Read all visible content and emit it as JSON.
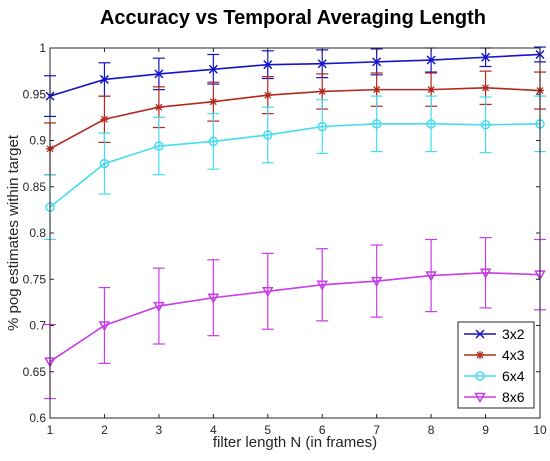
{
  "chart_data": {
    "type": "line",
    "title": "Accuracy vs Temporal Averaging Length",
    "xlabel": "filter length N (in frames)",
    "ylabel": "% pog estimates within target",
    "xlim": [
      1,
      10
    ],
    "ylim": [
      0.6,
      1.0
    ],
    "x_ticks": [
      1,
      2,
      3,
      4,
      5,
      6,
      7,
      8,
      9,
      10
    ],
    "y_ticks": [
      0.6,
      0.65,
      0.7,
      0.75,
      0.8,
      0.85,
      0.9,
      0.95,
      1.0
    ],
    "y_tick_labels": [
      "0.6",
      "0.65",
      "0.7",
      "0.75",
      "0.8",
      "0.85",
      "0.9",
      "0.95",
      "1"
    ],
    "grid": false,
    "legend_position": "bottom-right",
    "x": [
      1,
      2,
      3,
      4,
      5,
      6,
      7,
      8,
      9,
      10
    ],
    "series": [
      {
        "name": "3x2",
        "color": "#1414c8",
        "marker": "x",
        "values": [
          0.948,
          0.966,
          0.972,
          0.977,
          0.982,
          0.983,
          0.985,
          0.987,
          0.99,
          0.993
        ],
        "errors": [
          0.022,
          0.018,
          0.017,
          0.016,
          0.015,
          0.015,
          0.014,
          0.013,
          0.01,
          0.008
        ]
      },
      {
        "name": "4x3",
        "color": "#b4281e",
        "marker": "*",
        "values": [
          0.891,
          0.923,
          0.936,
          0.942,
          0.949,
          0.953,
          0.955,
          0.955,
          0.957,
          0.954
        ],
        "errors": [
          0.028,
          0.025,
          0.022,
          0.021,
          0.02,
          0.019,
          0.018,
          0.018,
          0.018,
          0.02
        ]
      },
      {
        "name": "6x4",
        "color": "#44dcf0",
        "marker": "o",
        "values": [
          0.828,
          0.875,
          0.894,
          0.899,
          0.906,
          0.915,
          0.918,
          0.918,
          0.917,
          0.918
        ],
        "errors": [
          0.035,
          0.033,
          0.031,
          0.03,
          0.03,
          0.029,
          0.03,
          0.03,
          0.03,
          0.03
        ]
      },
      {
        "name": "8x6",
        "color": "#c83ce8",
        "marker": "v",
        "values": [
          0.661,
          0.7,
          0.721,
          0.73,
          0.737,
          0.744,
          0.748,
          0.754,
          0.757,
          0.755
        ],
        "errors": [
          0.04,
          0.041,
          0.041,
          0.041,
          0.041,
          0.039,
          0.039,
          0.039,
          0.038,
          0.038
        ]
      }
    ]
  }
}
